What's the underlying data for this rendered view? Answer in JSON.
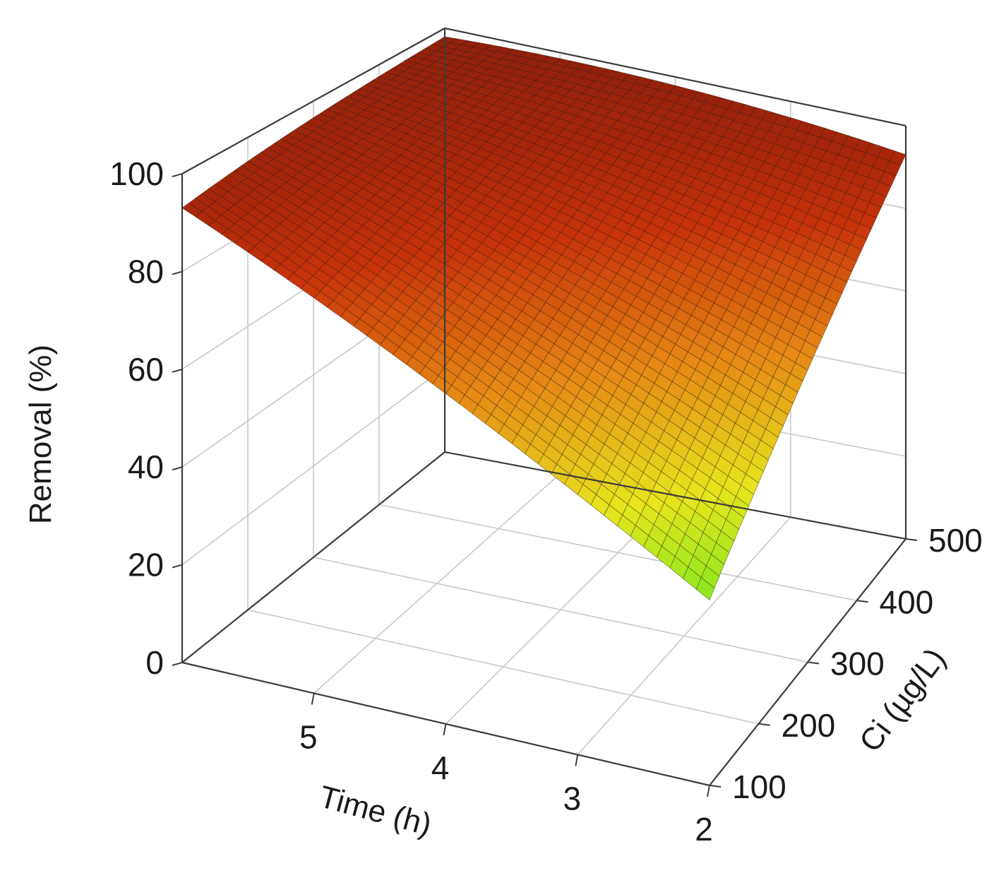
{
  "chart_data": {
    "type": "surface",
    "x_axis": {
      "label": "Time (h)",
      "ticks": [
        2,
        3,
        4,
        5
      ],
      "range": [
        2,
        6
      ]
    },
    "y_axis": {
      "label": "Ci (µg/L)",
      "ticks": [
        100,
        200,
        300,
        400,
        500
      ],
      "range": [
        100,
        500
      ]
    },
    "z_axis": {
      "label": "Removal (%)",
      "ticks": [
        0,
        20,
        40,
        60,
        80,
        100
      ],
      "range": [
        0,
        100
      ]
    },
    "grid": true,
    "colormap": [
      "#78e61e",
      "#e6e61e",
      "#e68c14",
      "#c8320a",
      "#8c1e0a"
    ],
    "corner_values": [
      {
        "time": 6,
        "ci": 100,
        "removal": 93
      },
      {
        "time": 6,
        "ci": 500,
        "removal": 98
      },
      {
        "time": 2,
        "ci": 500,
        "removal": 93
      },
      {
        "time": 2,
        "ci": 100,
        "removal": 42
      }
    ]
  }
}
